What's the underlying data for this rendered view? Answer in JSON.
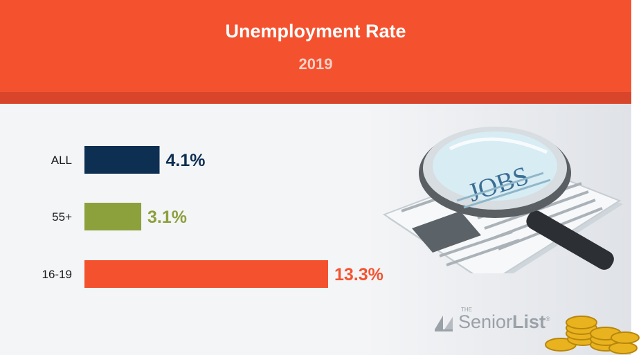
{
  "header": {
    "title": "Unemployment Rate",
    "subtitle": "2019"
  },
  "colors": {
    "header": "#f4522f",
    "all": "#0d2f52",
    "age55": "#8ca03c",
    "teen": "#f4522f"
  },
  "chart_data": {
    "type": "bar",
    "orientation": "horizontal",
    "title": "Unemployment Rate",
    "subtitle": "2019",
    "categories": [
      "ALL",
      "55+",
      "16-19"
    ],
    "values": [
      4.1,
      3.1,
      13.3
    ],
    "value_labels": [
      "4.1%",
      "3.1%",
      "13.3%"
    ],
    "bar_colors": [
      "#0d2f52",
      "#8ca03c",
      "#f4522f"
    ],
    "xlim": [
      0,
      13.3
    ],
    "grid": false,
    "legend": "none"
  },
  "illustration": {
    "newspaper_text": "JOBS"
  },
  "brand": {
    "the": "THE",
    "name_light": "Senior",
    "name_bold": "List",
    "mark": "®"
  }
}
